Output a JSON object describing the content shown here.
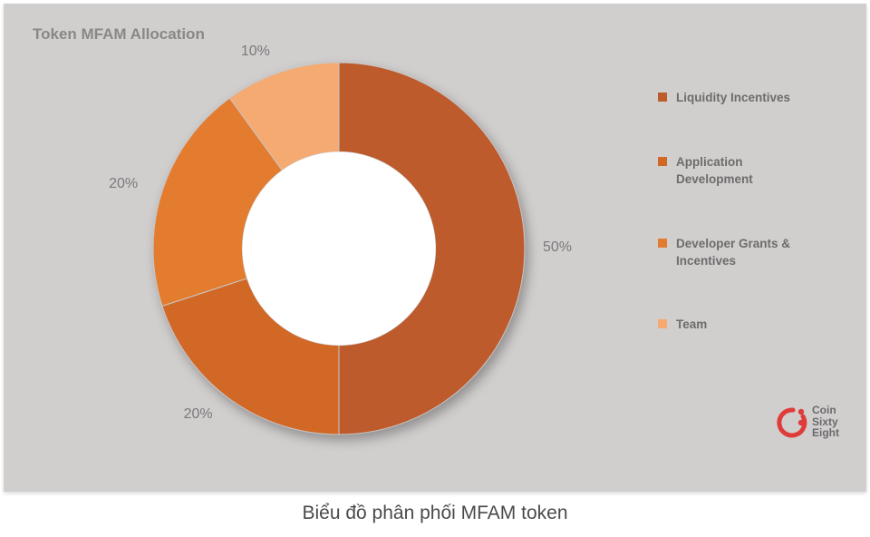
{
  "chart": {
    "title": "Token MFAM Allocation",
    "type": "donut",
    "inner_radius_ratio": 0.52,
    "background_color": "#d1cece",
    "slices": [
      {
        "label": "Liquidity Incentives",
        "value": 50,
        "display": "50%",
        "color": "#bd5b2c"
      },
      {
        "label": "Application Development",
        "value": 20,
        "display": "20%",
        "color": "#d26826"
      },
      {
        "label": "Developer Grants & Incentives",
        "value": 20,
        "display": "20%",
        "color": "#e47c30"
      },
      {
        "label": "Team",
        "value": 10,
        "display": "10%",
        "color": "#f4aa71"
      }
    ],
    "label_fontsize": 16,
    "label_color": "#7a7a7a",
    "legend_fontsize": 13.5,
    "legend_color": "#6d6b6b",
    "title_fontsize": 17,
    "title_color": "#8a8787"
  },
  "caption": "Biểu đồ phân phối MFAM token",
  "logo": {
    "line1": "Coin",
    "line2": "Sixty",
    "line3": "Eight",
    "accent_color": "#e03b3b"
  }
}
